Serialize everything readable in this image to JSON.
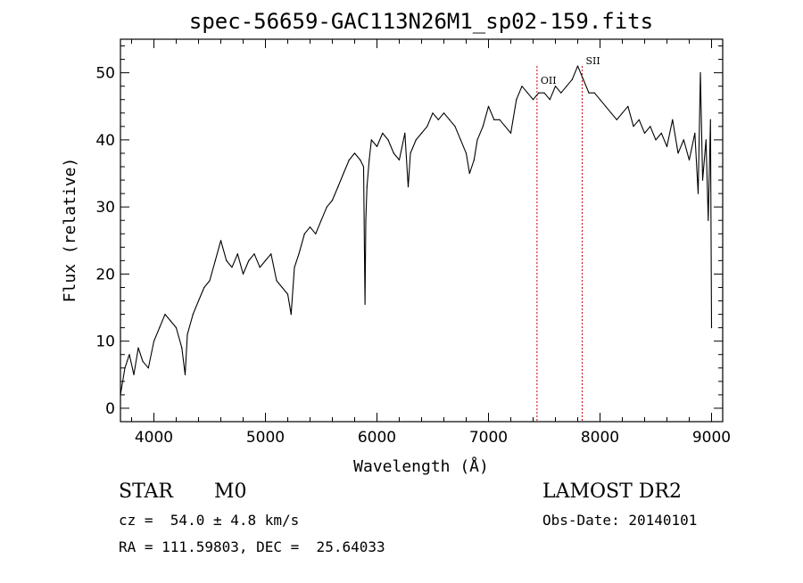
{
  "chart_data": {
    "type": "line",
    "title": "spec-56659-GAC113N26M1_sp02-159.fits",
    "xlabel": "Wavelength (Å)",
    "ylabel": "Flux (relative)",
    "xlim": [
      3700,
      9100
    ],
    "ylim": [
      -2,
      55
    ],
    "xticks": [
      4000,
      5000,
      6000,
      7000,
      8000,
      9000
    ],
    "yticks": [
      0,
      10,
      20,
      30,
      40,
      50
    ],
    "grid": false,
    "line_color": "#000000",
    "marker_color": "#cc0000",
    "series": [
      {
        "x": [
          3700,
          3740,
          3780,
          3820,
          3860,
          3900,
          3950,
          4000,
          4050,
          4100,
          4150,
          4200,
          4250,
          4280,
          4300,
          4350,
          4400,
          4450,
          4500,
          4550,
          4600,
          4650,
          4700,
          4750,
          4800,
          4850,
          4900,
          4950,
          5000,
          5050,
          5100,
          5150,
          5200,
          5230,
          5260,
          5300,
          5350,
          5400,
          5450,
          5500,
          5550,
          5600,
          5650,
          5700,
          5750,
          5800,
          5850,
          5880,
          5893,
          5900,
          5910,
          5930,
          5950,
          6000,
          6050,
          6100,
          6150,
          6200,
          6250,
          6280,
          6300,
          6350,
          6400,
          6450,
          6500,
          6550,
          6600,
          6650,
          6700,
          6750,
          6800,
          6830,
          6870,
          6900,
          6950,
          7000,
          7050,
          7100,
          7150,
          7200,
          7250,
          7300,
          7350,
          7400,
          7450,
          7500,
          7550,
          7600,
          7650,
          7700,
          7750,
          7800,
          7850,
          7900,
          7950,
          8000,
          8050,
          8100,
          8150,
          8200,
          8250,
          8300,
          8350,
          8400,
          8450,
          8500,
          8550,
          8600,
          8650,
          8700,
          8750,
          8800,
          8850,
          8880,
          8900,
          8920,
          8950,
          8970,
          8990,
          9000
        ],
        "y": [
          2,
          6,
          8,
          5,
          9,
          7,
          6,
          10,
          12,
          14,
          13,
          12,
          9,
          5,
          11,
          14,
          16,
          18,
          19,
          22,
          25,
          22,
          21,
          23,
          20,
          22,
          23,
          21,
          22,
          23,
          19,
          18,
          17,
          14,
          21,
          23,
          26,
          27,
          26,
          28,
          30,
          31,
          33,
          35,
          37,
          38,
          37,
          36,
          15.5,
          28,
          33,
          37,
          40,
          39,
          41,
          40,
          38,
          37,
          41,
          33,
          38,
          40,
          41,
          42,
          44,
          43,
          44,
          43,
          42,
          40,
          38,
          35,
          37,
          40,
          42,
          45,
          43,
          43,
          42,
          41,
          46,
          48,
          47,
          46,
          47,
          47,
          46,
          48,
          47,
          48,
          49,
          51,
          49,
          47,
          47,
          46,
          45,
          44,
          43,
          44,
          45,
          42,
          43,
          41,
          42,
          40,
          41,
          39,
          43,
          38,
          40,
          37,
          41,
          32,
          50,
          34,
          40,
          28,
          43,
          12
        ]
      }
    ],
    "markers": [
      {
        "label": "OII",
        "x": 7435
      },
      {
        "label": "SII",
        "x": 7840
      }
    ]
  },
  "info": {
    "object_class": "STAR",
    "subclass": "M0",
    "velocity": "cz =  54.0 ± 4.8 km/s",
    "coords": "RA = 111.59803, DEC =  25.64033",
    "survey": "LAMOST DR2",
    "obs_date": "Obs-Date: 20140101"
  }
}
